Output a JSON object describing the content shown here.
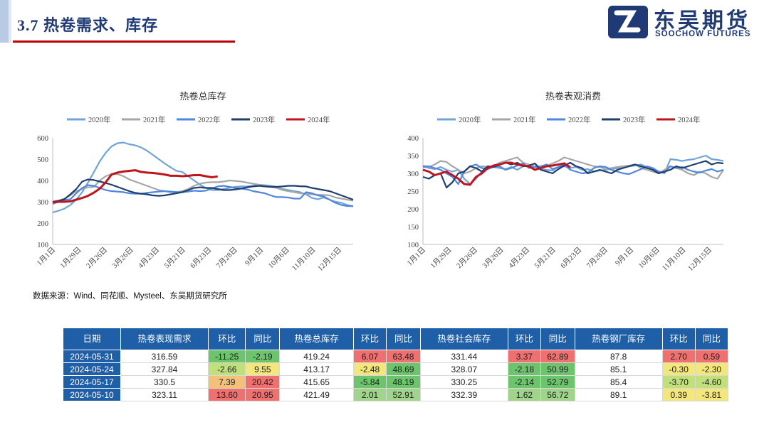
{
  "header": {
    "title": "3.7 热卷需求、库存",
    "logo_cn": "东吴期货",
    "logo_en": "SOOCHOW FUTURES"
  },
  "colors": {
    "2020年": "#6ea4d8",
    "2021年": "#a6a6a6",
    "2022年": "#4f87e0",
    "2023年": "#1f3f6e",
    "2024年": "#c0141c",
    "table_header": "#1f5fa8"
  },
  "chart_data": [
    {
      "type": "line",
      "title": "热卷总库存",
      "x_tick_labels": [
        "1月1日",
        "1月29日",
        "2月26日",
        "3月26日",
        "4月23日",
        "5月21日",
        "6月23日",
        "7月28日",
        "9月1日",
        "10月6日",
        "11月10日",
        "12月15日"
      ],
      "week_count": 52,
      "ylim": [
        100,
        600
      ],
      "yticks": [
        100,
        200,
        300,
        400,
        500,
        600
      ],
      "legend_position": "top",
      "series": [
        {
          "name": "2020年",
          "values": [
            250,
            258,
            268,
            285,
            310,
            345,
            390,
            440,
            490,
            530,
            560,
            575,
            578,
            570,
            565,
            555,
            540,
            520,
            500,
            480,
            462,
            445,
            440,
            420,
            400,
            380,
            365,
            355,
            355,
            360,
            365,
            370,
            372,
            372,
            375,
            380,
            378,
            375,
            370,
            360,
            355,
            350,
            345,
            335,
            318,
            312,
            320,
            310,
            300,
            295,
            285,
            278
          ]
        },
        {
          "name": "2021年",
          "values": [
            300,
            305,
            315,
            330,
            350,
            360,
            368,
            370,
            400,
            420,
            430,
            430,
            420,
            405,
            395,
            385,
            375,
            365,
            355,
            350,
            345,
            345,
            350,
            360,
            375,
            385,
            390,
            392,
            392,
            395,
            400,
            398,
            395,
            390,
            385,
            380,
            375,
            370,
            365,
            355,
            350,
            345,
            340,
            338,
            335,
            333,
            332,
            330,
            320,
            315,
            310,
            305
          ]
        },
        {
          "name": "2022年",
          "values": [
            290,
            300,
            308,
            312,
            340,
            365,
            378,
            375,
            365,
            355,
            350,
            348,
            345,
            340,
            338,
            338,
            342,
            345,
            348,
            350,
            348,
            346,
            345,
            348,
            352,
            350,
            352,
            362,
            372,
            375,
            370,
            365,
            362,
            358,
            350,
            345,
            340,
            330,
            322,
            322,
            320,
            315,
            315,
            345,
            340,
            330,
            325,
            310,
            295,
            285,
            280,
            280
          ]
        },
        {
          "name": "2023年",
          "values": [
            300,
            305,
            312,
            335,
            360,
            395,
            405,
            402,
            395,
            388,
            380,
            370,
            360,
            350,
            342,
            338,
            335,
            330,
            328,
            330,
            335,
            340,
            345,
            355,
            365,
            368,
            365,
            365,
            360,
            355,
            355,
            358,
            362,
            368,
            372,
            375,
            372,
            370,
            370,
            372,
            375,
            375,
            373,
            372,
            365,
            360,
            355,
            350,
            340,
            330,
            320,
            310
          ]
        },
        {
          "name": "2024年",
          "values": [
            298,
            300,
            300,
            302,
            310,
            318,
            328,
            343,
            362,
            392,
            428,
            437,
            442,
            445,
            448,
            440,
            437,
            435,
            432,
            428,
            422,
            422,
            420,
            422,
            425,
            425,
            420,
            415,
            419
          ]
        }
      ]
    },
    {
      "type": "line",
      "title": "热卷表观消费",
      "x_tick_labels": [
        "1月1日",
        "1月29日",
        "2月26日",
        "3月26日",
        "4月23日",
        "5月21日",
        "6月23日",
        "7月28日",
        "9月1日",
        "10月6日",
        "11月10日",
        "12月15日"
      ],
      "week_count": 52,
      "ylim": [
        100,
        400
      ],
      "yticks": [
        100,
        150,
        200,
        250,
        300,
        350,
        400
      ],
      "legend_position": "top",
      "series": [
        {
          "name": "2020年",
          "values": [
            320,
            315,
            312,
            318,
            310,
            305,
            310,
            285,
            270,
            285,
            305,
            320,
            318,
            315,
            312,
            318,
            310,
            320,
            322,
            318,
            312,
            310,
            308,
            318,
            320,
            315,
            318,
            310,
            312,
            305,
            308,
            310,
            312,
            315,
            318,
            320,
            322,
            325,
            318,
            310,
            305,
            300,
            340,
            338,
            335,
            338,
            340,
            345,
            350,
            340,
            338,
            335
          ]
        },
        {
          "name": "2021年",
          "values": [
            322,
            318,
            325,
            335,
            332,
            320,
            310,
            300,
            305,
            315,
            320,
            318,
            320,
            330,
            335,
            340,
            345,
            330,
            325,
            320,
            318,
            322,
            328,
            335,
            345,
            340,
            335,
            330,
            325,
            320,
            318,
            312,
            315,
            318,
            320,
            322,
            325,
            315,
            310,
            305,
            300,
            310,
            320,
            315,
            310,
            300,
            295,
            305,
            300,
            290,
            285,
            310
          ]
        },
        {
          "name": "2022年",
          "values": [
            318,
            320,
            315,
            310,
            300,
            290,
            270,
            305,
            320,
            325,
            315,
            312,
            318,
            320,
            310,
            315,
            322,
            328,
            315,
            318,
            320,
            325,
            312,
            318,
            325,
            310,
            305,
            300,
            302,
            315,
            320,
            318,
            310,
            305,
            300,
            298,
            305,
            312,
            320,
            315,
            305,
            302,
            320,
            315,
            318,
            310,
            305,
            302,
            308,
            312,
            305,
            310
          ]
        },
        {
          "name": "2023年",
          "values": [
            290,
            285,
            295,
            300,
            260,
            275,
            300,
            305,
            320,
            315,
            305,
            320,
            318,
            325,
            330,
            325,
            330,
            320,
            322,
            328,
            310,
            305,
            300,
            312,
            322,
            330,
            320,
            315,
            300,
            305,
            310,
            305,
            300,
            310,
            315,
            320,
            325,
            320,
            315,
            310,
            300,
            305,
            310,
            320,
            315,
            320,
            325,
            330,
            335,
            325,
            330,
            328
          ]
        },
        {
          "name": "2024年",
          "values": [
            310,
            305,
            295,
            300,
            305,
            295,
            285,
            270,
            268,
            290,
            300,
            315,
            322,
            325,
            330,
            330,
            325,
            322,
            320,
            310,
            315,
            320,
            322,
            325,
            328,
            317
          ]
        }
      ]
    },
    {
      "type": "table",
      "headers": [
        "日期",
        "热卷表现需求",
        "环比",
        "同比",
        "热卷总库存",
        "环比",
        "同比",
        "热卷社会库存",
        "环比",
        "同比",
        "热卷钢厂库存",
        "环比",
        "同比"
      ],
      "rows": [
        [
          "2024-05-31",
          "316.59",
          "-11.25",
          "-2.19",
          "419.24",
          "6.07",
          "63.48",
          "331.44",
          "3.37",
          "62.89",
          "87.8",
          "2.70",
          "0.59"
        ],
        [
          "2024-05-24",
          "327.84",
          "-2.66",
          "9.55",
          "413.17",
          "-2.48",
          "48.69",
          "328.07",
          "-2.18",
          "50.99",
          "85.1",
          "-0.30",
          "-2.30"
        ],
        [
          "2024-05-17",
          "330.5",
          "7.39",
          "20.42",
          "415.65",
          "-5.84",
          "48.19",
          "330.25",
          "-2.14",
          "52.79",
          "85.4",
          "-3.70",
          "-4.60"
        ],
        [
          "2024-05-10",
          "323.11",
          "13.60",
          "20.95",
          "421.49",
          "2.01",
          "52.91",
          "332.39",
          "1.62",
          "56.72",
          "89.1",
          "0.39",
          "-3.81"
        ]
      ],
      "cell_colors": [
        [
          "",
          "",
          "#6cc46c",
          "#6cc46c",
          "",
          "#f07070",
          "#f07070",
          "",
          "#f07070",
          "#f07070",
          "",
          "#f07070",
          "#f07070"
        ],
        [
          "",
          "",
          "#bfe07a",
          "#f3e67a",
          "",
          "#f3e67a",
          "#6cc46c",
          "",
          "#6cc46c",
          "#6cc46c",
          "",
          "#f3e67a",
          "#f3e67a"
        ],
        [
          "",
          "",
          "#f3c27a",
          "#f07070",
          "",
          "#6cc46c",
          "#6cc46c",
          "",
          "#6cc46c",
          "#6cc46c",
          "",
          "#bfe07a",
          "#bfe07a"
        ],
        [
          "",
          "",
          "#f07070",
          "#f07070",
          "",
          "#9fd48a",
          "#9fd48a",
          "",
          "#9fd48a",
          "#9fd48a",
          "",
          "#f3e67a",
          "#f3e67a"
        ]
      ]
    }
  ],
  "source_note": "数据来源：Wind、同花顺、Mysteel、东吴期货研究所"
}
